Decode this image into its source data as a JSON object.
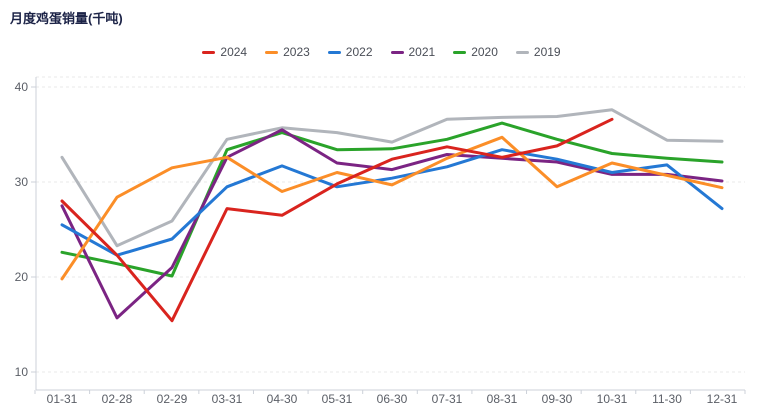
{
  "title": "月度鸡蛋销量(千吨)",
  "colors": {
    "title_text": "#1c2347",
    "axis_line": "#ccd1d9",
    "grid_line": "#e8e8e8",
    "axis_text": "#5a5e66",
    "legend_text": "#4a4e57"
  },
  "chart_data": {
    "type": "line",
    "title": "月度鸡蛋销量(千吨)",
    "xlabel": "",
    "ylabel": "",
    "ylim": [
      10,
      40
    ],
    "yticks": [
      40,
      30,
      20,
      10
    ],
    "grid": true,
    "legend_position": "top",
    "categories": [
      "01-31",
      "02-28",
      "02-29",
      "03-31",
      "04-30",
      "05-31",
      "06-30",
      "07-31",
      "08-31",
      "09-30",
      "10-31",
      "11-30",
      "12-31"
    ],
    "series": [
      {
        "name": "2024",
        "color": "#d9241e",
        "values": [
          28,
          22.3,
          15.4,
          27.2,
          26.5,
          29.8,
          32.4,
          33.7,
          32.6,
          33.8,
          36.6,
          null,
          null
        ]
      },
      {
        "name": "2023",
        "color": "#fb8e28",
        "values": [
          19.8,
          28.4,
          31.5,
          32.6,
          29.0,
          31.0,
          29.7,
          32.5,
          34.7,
          29.5,
          32.0,
          30.7,
          29.4
        ]
      },
      {
        "name": "2022",
        "color": "#2478d4",
        "values": [
          25.5,
          22.3,
          24.0,
          29.5,
          31.7,
          29.5,
          30.4,
          31.6,
          33.4,
          32.4,
          31.0,
          31.8,
          27.2
        ]
      },
      {
        "name": "2021",
        "color": "#7b2483",
        "values": [
          27.5,
          15.7,
          21.0,
          32.6,
          35.5,
          32.0,
          31.3,
          32.9,
          32.5,
          32.1,
          30.8,
          30.8,
          30.1
        ]
      },
      {
        "name": "2020",
        "color": "#2aa32a",
        "values": [
          22.6,
          21.4,
          20.1,
          33.4,
          35.2,
          33.4,
          33.5,
          34.5,
          36.2,
          34.5,
          33.0,
          32.5,
          32.1
        ]
      },
      {
        "name": "2019",
        "color": "#b1b5bb",
        "values": [
          32.6,
          23.3,
          25.9,
          34.5,
          35.7,
          35.2,
          34.2,
          36.6,
          36.8,
          36.9,
          37.6,
          34.4,
          34.3
        ]
      }
    ]
  }
}
